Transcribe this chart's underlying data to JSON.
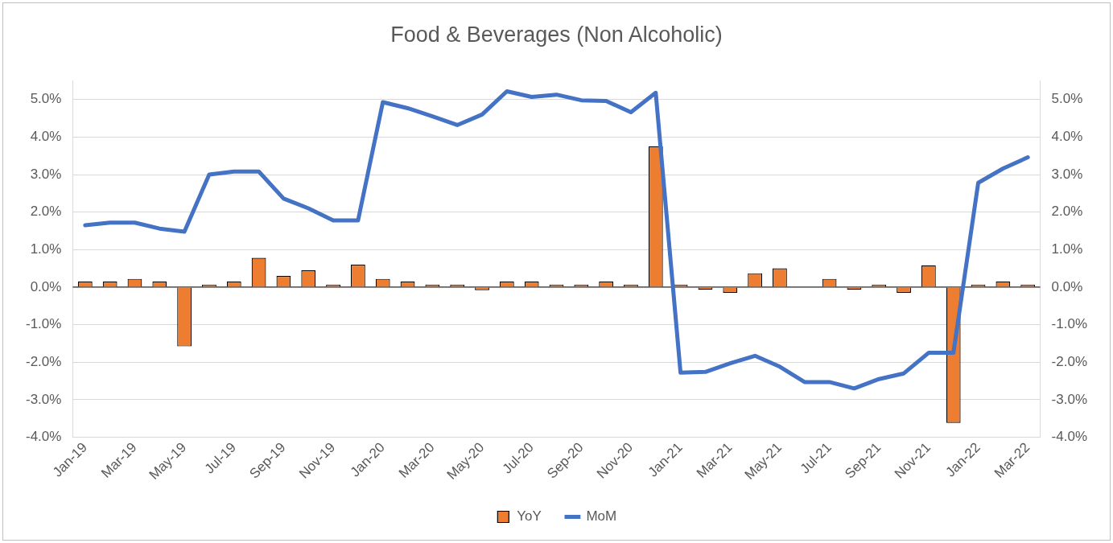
{
  "chart_data": {
    "type": "bar",
    "title": "Food & Beverages (Non Alcoholic)",
    "categories": [
      "Jan-19",
      null,
      "Mar-19",
      null,
      "May-19",
      null,
      "Jul-19",
      null,
      "Sep-19",
      null,
      "Nov-19",
      null,
      "Jan-20",
      null,
      "Mar-20",
      null,
      "May-20",
      null,
      "Jul-20",
      null,
      "Sep-20",
      null,
      "Nov-20",
      null,
      "Jan-21",
      null,
      "Mar-21",
      null,
      "May-21",
      null,
      "Jul-21",
      null,
      "Sep-21",
      null,
      "Nov-21",
      null,
      "Jan-22",
      null,
      "Mar-22"
    ],
    "series": [
      {
        "name": "YoY",
        "color": "#ed7d31",
        "values": [
          0.15,
          0.15,
          0.22,
          0.15,
          -1.58,
          0.07,
          0.15,
          0.78,
          0.3,
          0.45,
          0.07,
          0.6,
          0.22,
          0.15,
          0.07,
          0.07,
          -0.08,
          0.15,
          0.15,
          0.07,
          0.07,
          0.15,
          0.07,
          3.75,
          0.07,
          -0.07,
          -0.15,
          0.37,
          0.5,
          0,
          0.22,
          -0.07,
          0.07,
          -0.15,
          0.58,
          -3.62,
          0.07,
          0.15,
          0.07
        ]
      },
      {
        "name": "MoM",
        "type": "line",
        "axis": "y2",
        "color": "#4472c4",
        "values": [
          1.65,
          1.72,
          1.72,
          1.56,
          1.48,
          3.0,
          3.08,
          3.08,
          2.36,
          2.1,
          1.78,
          1.78,
          4.93,
          4.77,
          4.55,
          4.32,
          4.6,
          5.22,
          5.07,
          5.13,
          4.98,
          4.96,
          4.66,
          5.18,
          -2.28,
          -2.26,
          -2.03,
          -1.83,
          -2.12,
          -2.53,
          -2.53,
          -2.7,
          -2.45,
          -2.3,
          -1.75,
          -1.75,
          2.78,
          3.16,
          3.46
        ]
      }
    ],
    "ylim": [
      -4,
      5.5
    ],
    "yticks": [
      {
        "value": -4,
        "label": "-4.0%"
      },
      {
        "value": -3,
        "label": "-3.0%"
      },
      {
        "value": -2,
        "label": "-2.0%"
      },
      {
        "value": -1,
        "label": "-1.0%"
      },
      {
        "value": 0,
        "label": "0.0%"
      },
      {
        "value": 1,
        "label": "1.0%"
      },
      {
        "value": 2,
        "label": "2.0%"
      },
      {
        "value": 3,
        "label": "3.0%"
      },
      {
        "value": 4,
        "label": "4.0%"
      },
      {
        "value": 5,
        "label": "5.0%"
      }
    ],
    "y2lim": [
      -4,
      5.5
    ],
    "y2ticks": [
      {
        "value": -4,
        "label": "-4.0%"
      },
      {
        "value": -3,
        "label": "-3.0%"
      },
      {
        "value": -2,
        "label": "-2.0%"
      },
      {
        "value": -1,
        "label": "-1.0%"
      },
      {
        "value": 0,
        "label": "0.0%"
      },
      {
        "value": 1,
        "label": "1.0%"
      },
      {
        "value": 2,
        "label": "2.0%"
      },
      {
        "value": 3,
        "label": "3.0%"
      },
      {
        "value": 4,
        "label": "4.0%"
      },
      {
        "value": 5,
        "label": "5.0%"
      }
    ],
    "grid": "y",
    "legend": "bottom",
    "marker": "none",
    "line_style": "solid"
  }
}
